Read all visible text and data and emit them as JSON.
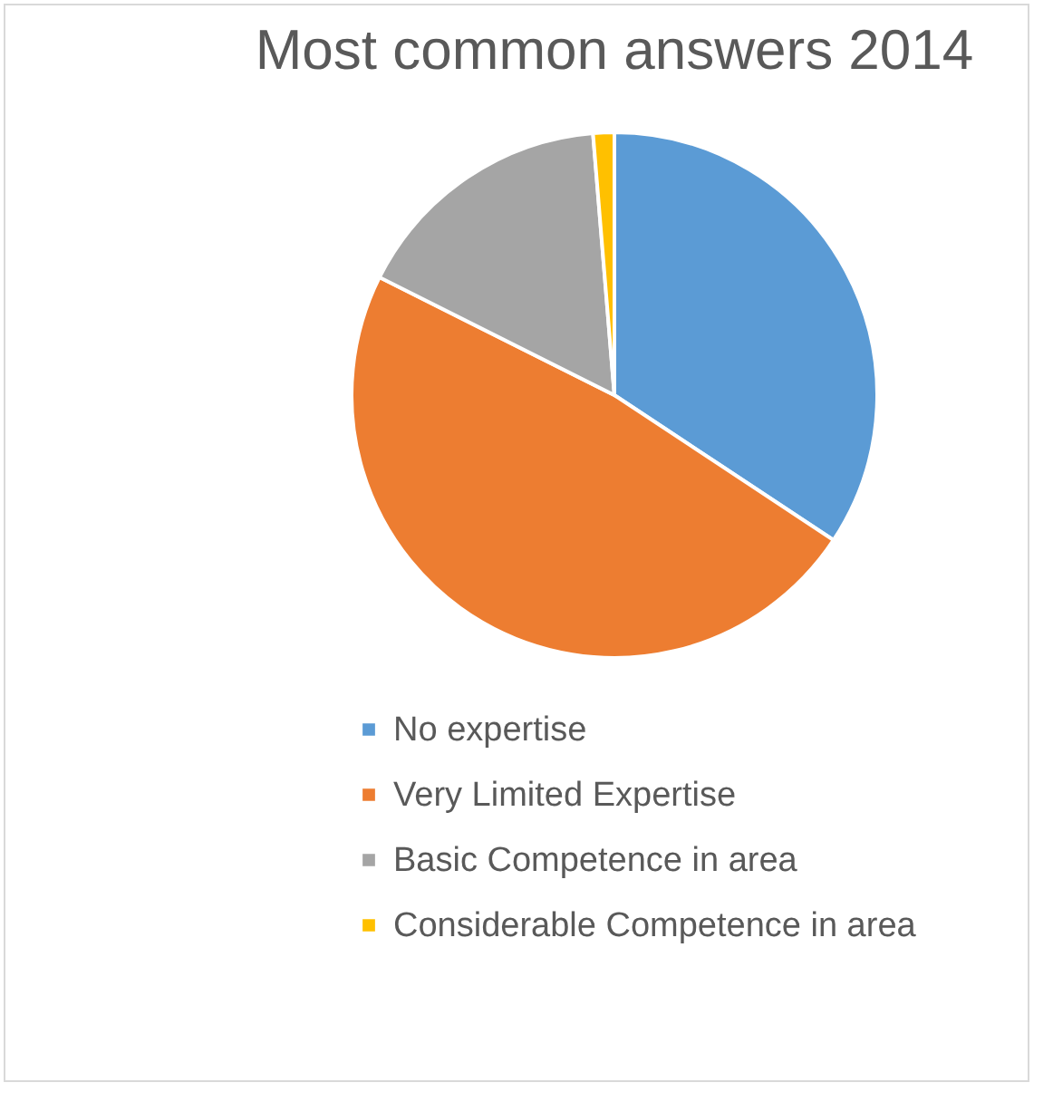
{
  "chart_data": {
    "type": "pie",
    "title": "Most common answers 2014",
    "categories": [
      "No expertise",
      "Very Limited Expertise",
      "Basic Competence in area",
      "Considerable Competence in area"
    ],
    "values": [
      34.3,
      48.1,
      16.3,
      1.3
    ],
    "colors": [
      "#5b9bd5",
      "#ed7d31",
      "#a5a5a5",
      "#ffc000"
    ],
    "legend": "bottom"
  }
}
